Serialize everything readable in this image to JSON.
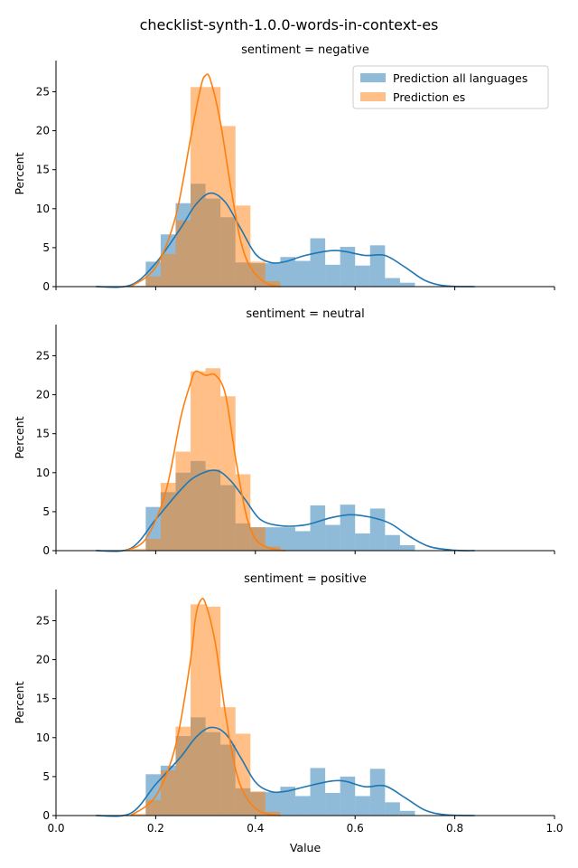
{
  "chart_data": {
    "type": "histogram",
    "title": "checklist-synth-1.0.0-words-in-context-es",
    "xlabel": "Value",
    "ylabel": "Percent",
    "xlim": [
      0.0,
      1.0
    ],
    "ylim": [
      0,
      29
    ],
    "x_ticks": [
      "0.0",
      "0.2",
      "0.4",
      "0.6",
      "0.8",
      "1.0"
    ],
    "y_ticks": [
      "0",
      "5",
      "10",
      "15",
      "20",
      "25"
    ],
    "grid": false,
    "legend_position": "top-right",
    "colors": {
      "all": "#1f77b4",
      "es": "#ff7f0e",
      "all_fill": "#92b9d8",
      "es_fill": "#ffbf87",
      "overlap_fill": "#93979a"
    },
    "legend": [
      "Prediction all languages",
      "Prediction es"
    ],
    "panels": [
      {
        "title": "sentiment = negative",
        "series": [
          {
            "name": "Prediction all languages",
            "bin_start": 0.18,
            "bin_width": 0.03,
            "values": [
              3.2,
              6.7,
              10.7,
              13.2,
              11.3,
              8.9,
              3.1,
              3.0,
              3.0,
              3.8,
              3.3,
              6.2,
              2.8,
              5.1,
              2.7,
              5.3,
              1.1,
              0.5
            ],
            "kde_x": [
              0.08,
              0.15,
              0.2,
              0.25,
              0.28,
              0.31,
              0.34,
              0.37,
              0.4,
              0.43,
              0.46,
              0.5,
              0.55,
              0.58,
              0.62,
              0.66,
              0.7,
              0.74,
              0.78,
              0.84
            ],
            "kde_y": [
              0,
              0.2,
              3.0,
              7.5,
              10.5,
              12.0,
              10.8,
              7.5,
              4.2,
              3.1,
              3.2,
              4.0,
              4.6,
              4.5,
              4.0,
              4.0,
              2.5,
              0.8,
              0.1,
              0
            ]
          },
          {
            "name": "Prediction es",
            "bin_start": 0.15,
            "bin_width": 0.03,
            "values": [
              0.1,
              1.3,
              4.2,
              8.5,
              25.6,
              25.6,
              20.6,
              10.4,
              3.2,
              0.7
            ],
            "kde_x": [
              0.15,
              0.2,
              0.24,
              0.27,
              0.29,
              0.3,
              0.31,
              0.33,
              0.35,
              0.37,
              0.39,
              0.42,
              0.45
            ],
            "kde_y": [
              0,
              2.5,
              9,
              19,
              25.5,
              27.1,
              26.5,
              21,
              13,
              6,
              2.5,
              0.5,
              0
            ]
          }
        ]
      },
      {
        "title": "sentiment = neutral",
        "series": [
          {
            "name": "Prediction all languages",
            "bin_start": 0.18,
            "bin_width": 0.03,
            "values": [
              5.6,
              7.5,
              10.0,
              11.5,
              10.4,
              8.4,
              3.5,
              3.0,
              3.0,
              3.0,
              2.5,
              5.8,
              3.3,
              5.9,
              2.2,
              5.4,
              2.0,
              0.7
            ],
            "kde_x": [
              0.08,
              0.15,
              0.2,
              0.25,
              0.28,
              0.32,
              0.35,
              0.38,
              0.41,
              0.45,
              0.5,
              0.55,
              0.59,
              0.63,
              0.67,
              0.71,
              0.75,
              0.8,
              0.84
            ],
            "kde_y": [
              0,
              0.3,
              4.0,
              7.8,
              9.5,
              10.3,
              9.0,
              6.5,
              4.0,
              3.2,
              3.3,
              4.2,
              4.6,
              4.3,
              3.5,
              1.8,
              0.5,
              0.05,
              0
            ]
          },
          {
            "name": "Prediction es",
            "bin_start": 0.15,
            "bin_width": 0.03,
            "values": [
              0.2,
              1.5,
              8.7,
              12.7,
              23.0,
              23.4,
              19.8,
              9.8,
              3.0,
              0.5
            ],
            "kde_x": [
              0.14,
              0.18,
              0.22,
              0.25,
              0.27,
              0.28,
              0.3,
              0.32,
              0.34,
              0.36,
              0.38,
              0.4,
              0.43,
              0.46
            ],
            "kde_y": [
              0,
              1.5,
              7.5,
              17,
              21.5,
              23,
              22.5,
              22.5,
              20,
              12,
              5,
              1.5,
              0.3,
              0
            ]
          }
        ]
      },
      {
        "title": "sentiment = positive",
        "series": [
          {
            "name": "Prediction all languages",
            "bin_start": 0.18,
            "bin_width": 0.03,
            "values": [
              5.3,
              6.4,
              10.2,
              12.6,
              10.7,
              9.1,
              3.5,
              3.0,
              3.0,
              3.7,
              2.5,
              6.1,
              2.9,
              5.0,
              2.5,
              6.0,
              1.7,
              0.6
            ],
            "kde_x": [
              0.08,
              0.15,
              0.2,
              0.25,
              0.28,
              0.31,
              0.34,
              0.37,
              0.4,
              0.43,
              0.46,
              0.5,
              0.55,
              0.58,
              0.62,
              0.66,
              0.7,
              0.74,
              0.78,
              0.84
            ],
            "kde_y": [
              0,
              0.3,
              4.0,
              7.5,
              10.0,
              11.3,
              10.5,
              7.5,
              4.3,
              3.1,
              3.1,
              3.7,
              4.4,
              4.4,
              3.7,
              3.8,
              2.3,
              0.7,
              0.1,
              0
            ]
          },
          {
            "name": "Prediction es",
            "bin_start": 0.15,
            "bin_width": 0.03,
            "values": [
              0.2,
              2.0,
              5.8,
              11.4,
              27.1,
              26.8,
              13.9,
              10.5,
              3.1,
              0.5
            ],
            "kde_x": [
              0.15,
              0.2,
              0.24,
              0.27,
              0.28,
              0.29,
              0.3,
              0.32,
              0.34,
              0.36,
              0.38,
              0.41,
              0.45
            ],
            "kde_y": [
              0,
              2.5,
              9,
              20,
              25.5,
              27.6,
              27.2,
              22,
              13,
              6,
              2.5,
              0.5,
              0
            ]
          }
        ]
      }
    ]
  }
}
